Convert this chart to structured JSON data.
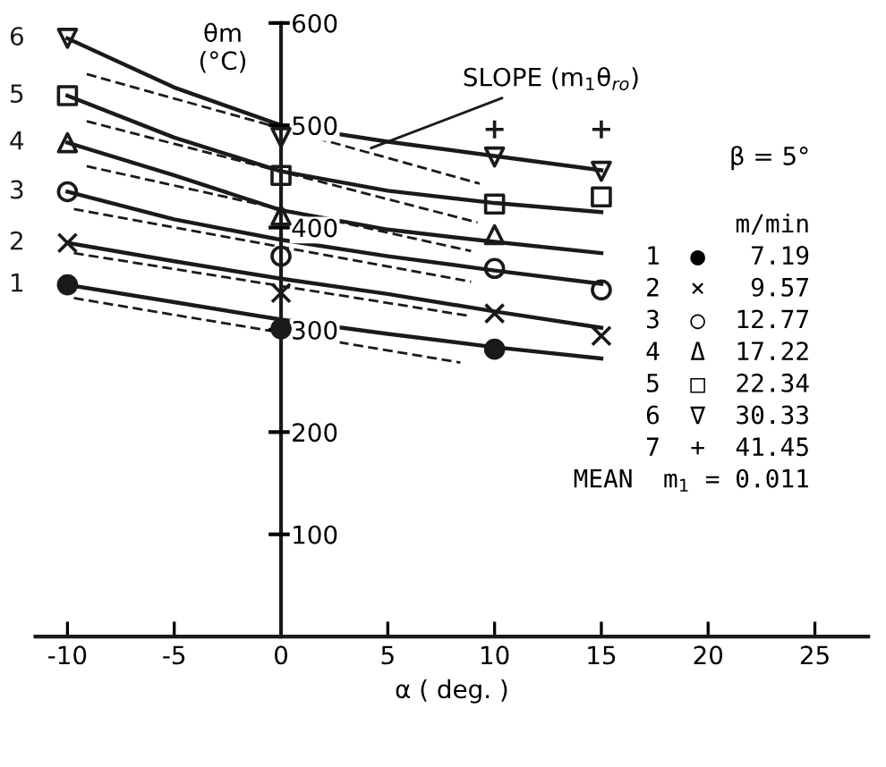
{
  "chart_data": {
    "type": "line",
    "xlabel": "α ( deg. )",
    "ylabel": "θm\n(°C)",
    "xlim": [
      -11.5,
      27.5
    ],
    "xticks": [
      -10,
      -5,
      0,
      5,
      10,
      15,
      20,
      25
    ],
    "ylim": [
      0,
      600
    ],
    "yticks": [
      100,
      200,
      300,
      400,
      500,
      600
    ],
    "grid": false,
    "legend": false,
    "series": [
      {
        "name": "1",
        "type": "line",
        "color": "#1a1a1a",
        "line_style": "solid",
        "marker": "none",
        "x": [
          -10,
          -5,
          0,
          5,
          10,
          15
        ],
        "values": [
          344,
          327,
          310,
          296,
          283,
          272
        ]
      },
      {
        "name": "2",
        "type": "line",
        "color": "#1a1a1a",
        "line_style": "solid",
        "marker": "none",
        "x": [
          -10,
          -5,
          0,
          5,
          10,
          15
        ],
        "values": [
          385,
          367,
          350,
          335,
          318,
          302
        ]
      },
      {
        "name": "3",
        "type": "line",
        "color": "#1a1a1a",
        "line_style": "solid",
        "marker": "none",
        "x": [
          -10,
          -5,
          0,
          5,
          10,
          15
        ],
        "values": [
          435,
          408,
          388,
          372,
          358,
          345
        ]
      },
      {
        "name": "4",
        "type": "line",
        "color": "#1a1a1a",
        "line_style": "solid",
        "marker": "none",
        "x": [
          -10,
          -5,
          0,
          5,
          10,
          15
        ],
        "values": [
          483,
          451,
          417,
          398,
          386,
          375
        ]
      },
      {
        "name": "5",
        "type": "line",
        "color": "#1a1a1a",
        "line_style": "solid",
        "marker": "none",
        "x": [
          -10,
          -5,
          0,
          5,
          10,
          15
        ],
        "values": [
          529,
          488,
          455,
          436,
          424,
          415
        ]
      },
      {
        "name": "6",
        "type": "line",
        "color": "#1a1a1a",
        "line_style": "solid",
        "marker": "none",
        "x": [
          -10,
          -5,
          0,
          5,
          10,
          15
        ],
        "values": [
          585,
          537,
          500,
          484,
          470,
          456
        ]
      },
      {
        "type": "line",
        "color": "#1a1a1a",
        "line_style": "dashed",
        "marker": "none",
        "x": [
          -9.7,
          8.4
        ],
        "values": [
          331,
          268
        ]
      },
      {
        "type": "line",
        "color": "#1a1a1a",
        "line_style": "dashed",
        "marker": "none",
        "x": [
          -9.7,
          8.7
        ],
        "values": [
          375,
          314
        ]
      },
      {
        "type": "line",
        "color": "#1a1a1a",
        "line_style": "dashed",
        "marker": "none",
        "x": [
          -9.7,
          8.9
        ],
        "values": [
          418,
          347
        ]
      },
      {
        "type": "line",
        "color": "#1a1a1a",
        "line_style": "dashed",
        "marker": "none",
        "x": [
          -9.1,
          8.9
        ],
        "values": [
          460,
          377
        ]
      },
      {
        "type": "line",
        "color": "#1a1a1a",
        "line_style": "dashed",
        "marker": "none",
        "x": [
          -9.1,
          9.2
        ],
        "values": [
          504,
          405
        ]
      },
      {
        "type": "line",
        "color": "#1a1a1a",
        "line_style": "dashed",
        "marker": "none",
        "x": [
          -9.1,
          9.3
        ],
        "values": [
          550,
          443
        ]
      },
      {
        "type": "scatter",
        "color": "#1a1a1a",
        "marker": "circle",
        "x": [
          -10,
          0,
          10
        ],
        "values": [
          344,
          301,
          281
        ]
      },
      {
        "type": "scatter",
        "color": "#1a1a1a",
        "marker": "x",
        "x": [
          -10,
          0,
          10,
          15
        ],
        "values": [
          385,
          336,
          316,
          294
        ]
      },
      {
        "type": "scatter",
        "color": "#1a1a1a",
        "marker": "circle_open",
        "x": [
          -10,
          0,
          10,
          15
        ],
        "values": [
          435,
          372,
          360,
          339
        ]
      },
      {
        "type": "scatter",
        "color": "#1a1a1a",
        "marker": "triangle",
        "x": [
          -10,
          0,
          10
        ],
        "values": [
          483,
          412,
          393
        ]
      },
      {
        "type": "scatter",
        "color": "#1a1a1a",
        "marker": "square",
        "x": [
          -10,
          0,
          10,
          15
        ],
        "values": [
          529,
          451,
          423,
          430
        ]
      },
      {
        "type": "scatter",
        "color": "#1a1a1a",
        "marker": "triangle_down",
        "x": [
          -10,
          0,
          10,
          15
        ],
        "values": [
          585,
          488,
          469,
          455
        ]
      },
      {
        "type": "scatter",
        "color": "#1a1a1a",
        "marker": "plus",
        "x": [
          10,
          15
        ],
        "values": [
          496,
          496
        ]
      }
    ],
    "annotations": [
      {
        "text": "SLOPE (m$_{1}$θ$_{ro}$)",
        "x": 4.0,
        "y": 476
      },
      "β = 5°",
      "m/min",
      "1  ●   7.19",
      "2  ×   9.57",
      "3  ○  12.77",
      "4  Δ  17.22",
      "5  □  22.34",
      "6  ∇  30.33",
      "7  +  41.45",
      "MEAN  m$_{1}$ = 0.011"
    ]
  }
}
